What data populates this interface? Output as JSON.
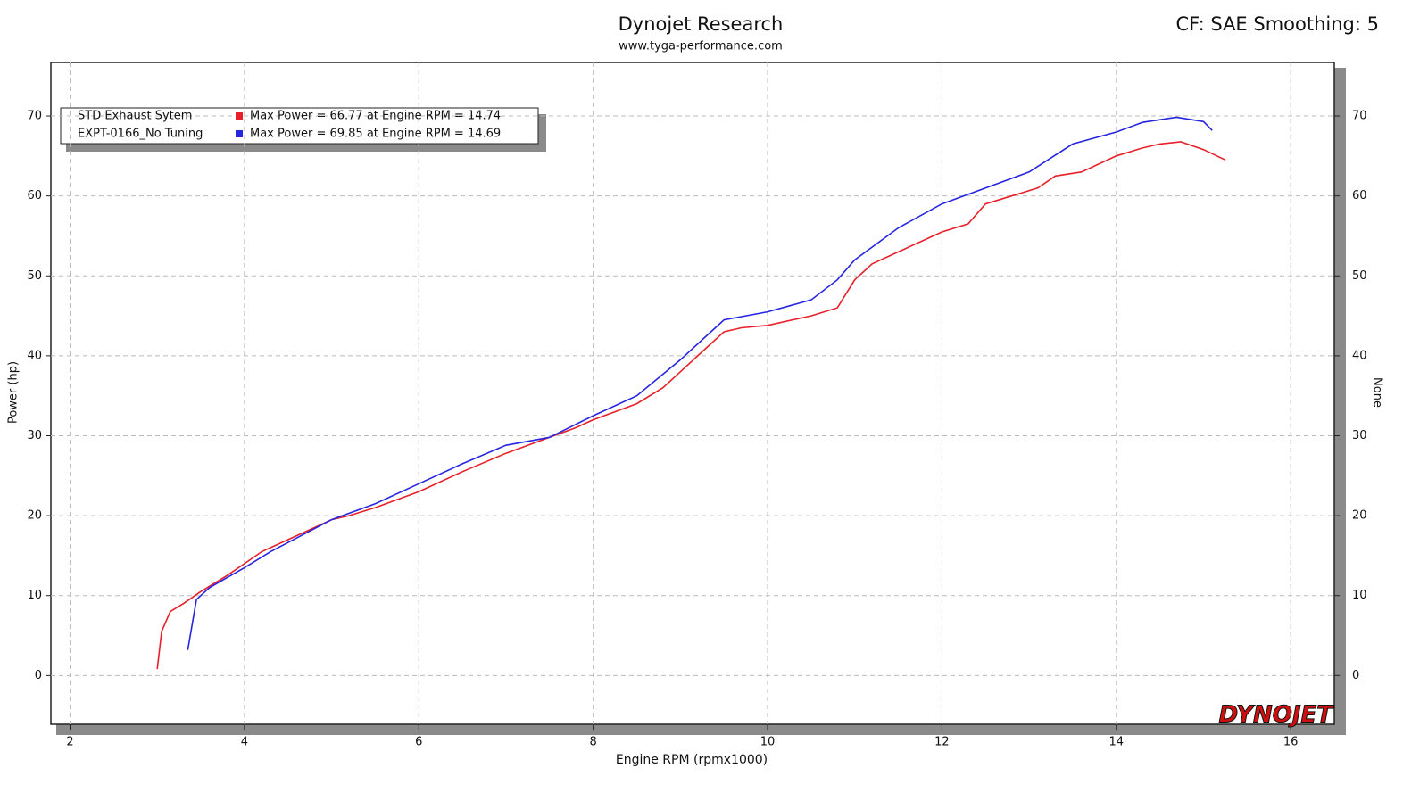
{
  "chart_data": {
    "type": "line",
    "title": "Dynojet Research",
    "subtitle": "www.tyga-performance.com",
    "annotation": "CF: SAE Smoothing: 5",
    "logo": "DYNOJET",
    "x_label": "Engine RPM (rpmx1000)",
    "y_label": "Power (hp)",
    "y2_label": "None",
    "xlim": [
      1.78,
      16.5
    ],
    "xticks": [
      2,
      4,
      6,
      8,
      10,
      12,
      14,
      16
    ],
    "ylim": [
      -6.1,
      76.7
    ],
    "yticks": [
      0,
      10,
      20,
      30,
      40,
      50,
      60,
      70
    ],
    "y2lim": [
      -6.1,
      76.7
    ],
    "y2ticks": [
      0,
      10,
      20,
      30,
      40,
      50,
      60,
      70
    ],
    "grid": true,
    "legend_position": "upper left",
    "series": [
      {
        "name": "STD Exhaust Sytem",
        "color": "#e8202a",
        "legend_text": "Max Power = 66.77 at Engine RPM = 14.74",
        "x": [
          3.0,
          3.05,
          3.15,
          3.3,
          3.5,
          3.8,
          4.0,
          4.2,
          4.5,
          5.0,
          5.2,
          5.5,
          6.0,
          6.5,
          7.0,
          7.5,
          7.8,
          8.0,
          8.5,
          8.8,
          9.0,
          9.3,
          9.5,
          9.7,
          10.0,
          10.5,
          10.8,
          11.0,
          11.2,
          11.5,
          12.0,
          12.3,
          12.5,
          12.8,
          13.1,
          13.3,
          13.6,
          14.0,
          14.3,
          14.5,
          14.74,
          15.0,
          15.25
        ],
        "values": [
          0.8,
          5.5,
          8,
          9,
          10.5,
          12.5,
          14,
          15.5,
          17,
          19.5,
          20,
          21,
          23,
          25.5,
          27.8,
          29.8,
          31,
          32,
          34,
          36,
          38,
          41,
          43,
          43.5,
          43.8,
          45,
          46,
          49.5,
          51.5,
          53,
          55.5,
          56.5,
          59,
          60,
          61,
          62.5,
          63,
          65,
          66,
          66.5,
          66.77,
          65.8,
          64.5
        ]
      },
      {
        "name": "EXPT-0166_No Tuning",
        "color": "#2626e0",
        "legend_text": "Max Power = 69.85 at Engine RPM = 14.69",
        "x": [
          3.35,
          3.45,
          3.6,
          4.0,
          4.3,
          5.0,
          5.5,
          6.0,
          6.5,
          7.0,
          7.5,
          8.0,
          8.5,
          9.0,
          9.3,
          9.5,
          10.0,
          10.5,
          10.8,
          11.0,
          11.5,
          12.0,
          12.5,
          13.0,
          13.5,
          14.0,
          14.3,
          14.69,
          15.0,
          15.1
        ],
        "values": [
          3.2,
          9.5,
          11,
          13.5,
          15.5,
          19.5,
          21.5,
          24,
          26.5,
          28.8,
          29.8,
          32.5,
          35,
          39.5,
          42.5,
          44.5,
          45.5,
          47,
          49.5,
          52,
          56,
          59,
          61,
          63,
          66.5,
          68,
          69.2,
          69.85,
          69.3,
          68.2
        ]
      }
    ]
  }
}
